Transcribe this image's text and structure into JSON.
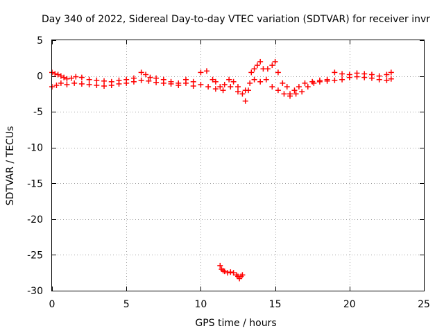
{
  "chart_data": {
    "type": "scatter",
    "title": "Day 340 of 2022, Sidereal Day-to-day VTEC variation (SDTVAR) for receiver invr",
    "xlabel": "GPS time / hours",
    "ylabel": "SDTVAR / TECUs",
    "xlim": [
      0,
      25
    ],
    "ylim": [
      -30,
      5
    ],
    "xticks": [
      0,
      5,
      10,
      15,
      20,
      25
    ],
    "yticks": [
      5,
      0,
      -5,
      -10,
      -15,
      -20,
      -25,
      -30
    ],
    "grid": true,
    "marker": "+",
    "series": [
      {
        "name": "SDTVAR",
        "color": "#ff0000",
        "x": [
          0.0,
          0.2,
          0.4,
          0.6,
          0.8,
          1.0,
          1.3,
          1.6,
          2.0,
          2.5,
          3.0,
          3.5,
          4.0,
          4.5,
          5.0,
          5.5,
          6.0,
          6.3,
          6.6,
          7.0,
          7.5,
          8.0,
          8.5,
          9.0,
          9.5,
          10.0,
          10.4,
          10.8,
          11.0,
          11.3,
          11.6,
          11.9,
          12.2,
          12.5,
          12.8,
          13.0,
          13.2,
          13.4,
          13.6,
          13.8,
          14.0,
          14.2,
          14.5,
          14.8,
          15.0,
          15.2,
          15.5,
          15.8,
          16.0,
          16.3,
          16.6,
          17.0,
          17.5,
          18.0,
          18.5,
          19.0,
          19.5,
          20.0,
          20.5,
          21.0,
          21.5,
          22.0,
          22.5,
          22.8,
          0.0,
          0.3,
          0.6,
          1.0,
          1.5,
          2.0,
          2.5,
          3.0,
          3.5,
          4.0,
          4.5,
          5.0,
          5.5,
          6.0,
          6.5,
          7.0,
          7.5,
          8.0,
          8.5,
          9.0,
          9.5,
          10.0,
          10.5,
          11.0,
          11.5,
          12.0,
          12.5,
          13.0,
          13.3,
          13.6,
          14.0,
          14.4,
          14.8,
          15.2,
          15.6,
          16.0,
          16.4,
          16.8,
          17.2,
          17.6,
          18.0,
          18.5,
          19.0,
          19.5,
          20.0,
          20.5,
          21.0,
          21.5,
          22.0,
          22.5,
          22.8,
          11.3,
          11.4,
          11.5,
          11.6,
          11.8,
          12.0,
          12.2,
          12.4,
          12.5,
          12.6,
          12.7,
          12.8
        ],
        "y": [
          0.5,
          0.3,
          0.2,
          0.0,
          -0.2,
          -0.4,
          -0.3,
          -0.1,
          -0.2,
          -0.5,
          -0.6,
          -0.7,
          -0.8,
          -0.6,
          -0.5,
          -0.3,
          0.5,
          0.2,
          -0.2,
          -0.3,
          -0.5,
          -0.8,
          -1.0,
          -0.5,
          -0.8,
          0.5,
          0.7,
          -0.5,
          -0.8,
          -1.5,
          -1.2,
          -0.5,
          -0.8,
          -1.5,
          -2.5,
          -3.5,
          -2.0,
          0.5,
          1.0,
          1.5,
          2.0,
          1.0,
          1.0,
          1.5,
          2.0,
          0.5,
          -1.0,
          -1.5,
          -2.5,
          -2.0,
          -1.5,
          -1.0,
          -0.8,
          -0.6,
          -0.5,
          0.5,
          0.3,
          0.2,
          0.4,
          0.3,
          0.2,
          0.0,
          0.2,
          0.5,
          -1.5,
          -1.3,
          -1.0,
          -1.2,
          -1.0,
          -1.1,
          -1.2,
          -1.3,
          -1.4,
          -1.3,
          -1.1,
          -1.0,
          -0.8,
          -0.6,
          -0.7,
          -0.9,
          -1.0,
          -1.1,
          -1.3,
          -1.0,
          -1.4,
          -1.2,
          -1.5,
          -1.8,
          -2.0,
          -1.5,
          -2.2,
          -2.0,
          -1.0,
          -0.5,
          -0.8,
          -0.5,
          -1.5,
          -2.0,
          -2.5,
          -2.8,
          -2.5,
          -2.2,
          -1.5,
          -1.0,
          -0.8,
          -0.7,
          -0.6,
          -0.5,
          -0.2,
          -0.1,
          -0.2,
          -0.3,
          -0.5,
          -0.6,
          -0.4,
          -26.5,
          -27.0,
          -27.2,
          -27.3,
          -27.5,
          -27.4,
          -27.5,
          -27.8,
          -28.0,
          -28.3,
          -28.0,
          -27.8
        ]
      }
    ]
  }
}
